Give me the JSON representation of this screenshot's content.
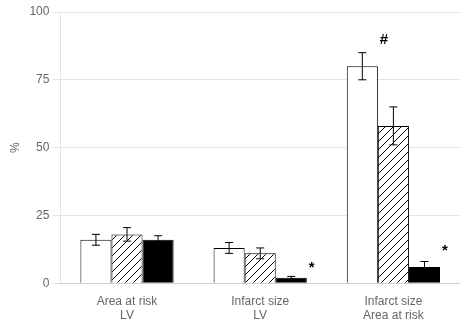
{
  "chart_data": {
    "type": "bar",
    "categories": [
      "Area at risk\nLV",
      "Infarct size\nLV",
      "Infarct size\nArea at risk"
    ],
    "series": [
      {
        "color": "white",
        "values": [
          16,
          13,
          80
        ],
        "errors": [
          2,
          2,
          5
        ]
      },
      {
        "color": "white",
        "values": [
          18,
          11,
          58
        ],
        "errors": [
          2.5,
          2,
          7
        ]
      },
      {
        "color": "black",
        "values": [
          16,
          2,
          6
        ],
        "errors": [
          1.5,
          0.5,
          2
        ]
      }
    ],
    "ylabel": "%",
    "ylim": [
      0,
      100
    ],
    "yticks": [
      0,
      25,
      50,
      75,
      100
    ],
    "grid": true,
    "annotations": [
      {
        "text": "*",
        "category": "Infarct size\nLV",
        "series": 2,
        "y": 3
      },
      {
        "text": "#",
        "category": "Infarct size\nArea at risk",
        "series": 0,
        "y": 87
      },
      {
        "text": "*",
        "category": "Infarct size\nArea at risk",
        "series": 2,
        "y": 9
      }
    ]
  }
}
